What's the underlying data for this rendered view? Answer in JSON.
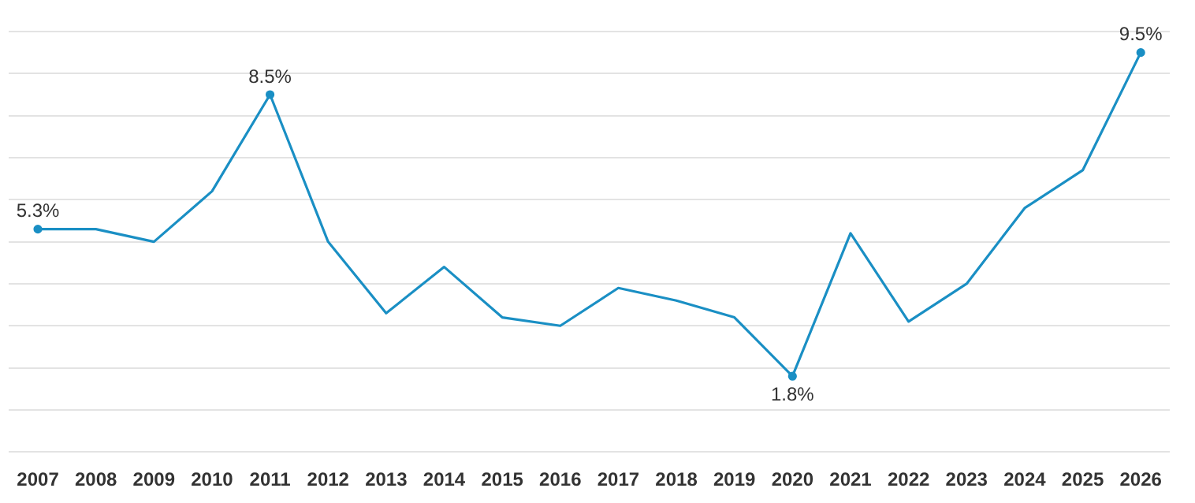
{
  "chart_data": {
    "type": "line",
    "categories": [
      "2007",
      "2008",
      "2009",
      "2010",
      "2011",
      "2012",
      "2013",
      "2014",
      "2015",
      "2016",
      "2017",
      "2018",
      "2019",
      "2020",
      "2021",
      "2022",
      "2023",
      "2024",
      "2025",
      "2026"
    ],
    "series": [
      {
        "color": "#1a8fc4",
        "values": [
          5.3,
          5.3,
          5.0,
          6.2,
          8.5,
          5.0,
          3.3,
          4.4,
          3.2,
          3.0,
          3.9,
          3.6,
          3.2,
          1.8,
          5.2,
          3.1,
          4.0,
          5.8,
          6.7,
          9.5
        ],
        "value_labels": [
          "5.3%",
          null,
          null,
          null,
          "8.5%",
          null,
          null,
          null,
          null,
          null,
          null,
          null,
          null,
          "1.8%",
          null,
          null,
          null,
          null,
          null,
          "9.5%"
        ]
      }
    ],
    "ylim": [
      0,
      10
    ],
    "yticks": [
      {
        "value": 0,
        "label": null
      },
      {
        "value": 1,
        "label": null
      },
      {
        "value": 2,
        "label": null
      },
      {
        "value": 3,
        "label": null
      },
      {
        "value": 4,
        "label": null
      },
      {
        "value": 5,
        "label": null
      },
      {
        "value": 6,
        "label": null
      },
      {
        "value": 7,
        "label": null
      },
      {
        "value": 8,
        "label": null
      },
      {
        "value": 9,
        "label": null
      },
      {
        "value": 10,
        "label": null
      }
    ],
    "tick_labels": "x",
    "grid": "y",
    "legend": false,
    "line_style": "solid"
  }
}
